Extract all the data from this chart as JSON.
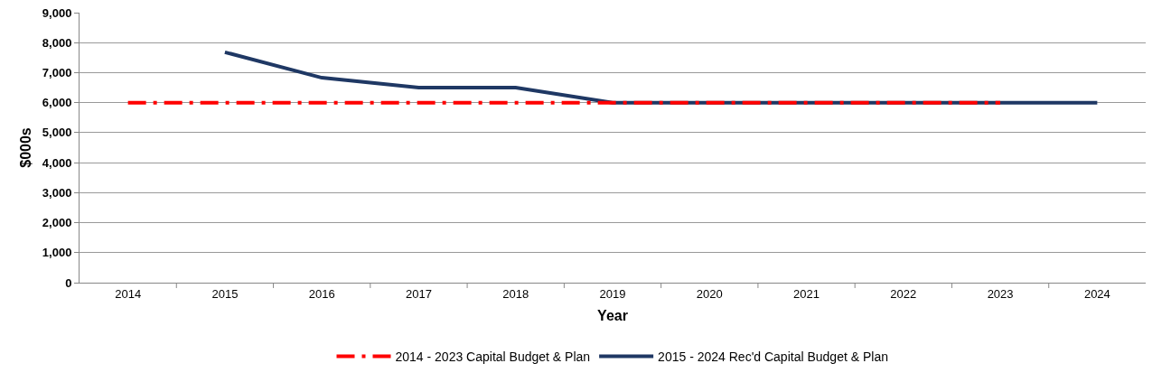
{
  "chart_data": {
    "type": "line",
    "xlabel": "Year",
    "ylabel": "$000s",
    "categories": [
      "2014",
      "2015",
      "2016",
      "2017",
      "2018",
      "2019",
      "2020",
      "2021",
      "2022",
      "2023",
      "2024"
    ],
    "series": [
      {
        "name": "2014 - 2023 Capital Budget & Plan",
        "color": "#ff0000",
        "line_style": "dashed",
        "values": [
          6000,
          6000,
          6000,
          6000,
          6000,
          6000,
          6000,
          6000,
          6000,
          6000,
          null
        ]
      },
      {
        "name": "2015 - 2024 Rec'd Capital Budget & Plan",
        "color": "#1f3864",
        "line_style": "solid",
        "values": [
          null,
          7680,
          6830,
          6500,
          6500,
          6000,
          6000,
          6000,
          6000,
          6000,
          6000
        ]
      }
    ],
    "ylim": [
      0,
      9000
    ],
    "yticks": [
      {
        "value": 0,
        "label": "0"
      },
      {
        "value": 1000,
        "label": "1,000"
      },
      {
        "value": 2000,
        "label": "2,000"
      },
      {
        "value": 3000,
        "label": "3,000"
      },
      {
        "value": 4000,
        "label": "4,000"
      },
      {
        "value": 5000,
        "label": "5,000"
      },
      {
        "value": 6000,
        "label": "6,000"
      },
      {
        "value": 7000,
        "label": "7,000"
      },
      {
        "value": 8000,
        "label": "8,000"
      },
      {
        "value": 9000,
        "label": "9,000"
      }
    ],
    "grid": "y",
    "legend": "bottom",
    "marker": "none"
  }
}
